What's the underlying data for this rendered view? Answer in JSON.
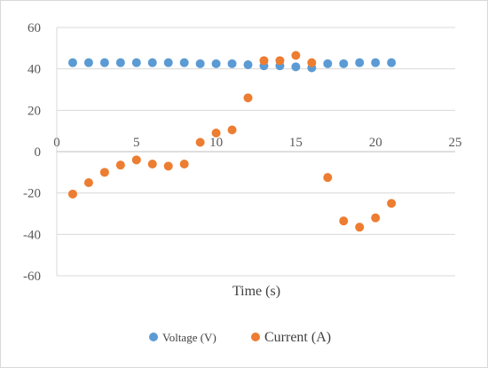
{
  "chart_data": {
    "type": "scatter",
    "title": "",
    "xlabel": "Time (s)",
    "ylabel": "",
    "xlim": [
      0,
      25
    ],
    "ylim": [
      -60,
      60
    ],
    "xticks": [
      0,
      5,
      10,
      15,
      20,
      25
    ],
    "yticks": [
      -60,
      -40,
      -20,
      0,
      20,
      40,
      60
    ],
    "grid": "horizontal",
    "legend_position": "bottom",
    "series": [
      {
        "name": "Voltage (V)",
        "color": "#5b9bd5",
        "x": [
          1,
          2,
          3,
          4,
          5,
          6,
          7,
          8,
          9,
          10,
          11,
          12,
          13,
          14,
          15,
          16,
          17,
          18,
          19,
          20,
          21
        ],
        "y": [
          43,
          43,
          43,
          43,
          43,
          43,
          43,
          43,
          42.5,
          42.5,
          42.5,
          42,
          41.5,
          41.5,
          41,
          40.5,
          42.5,
          42.5,
          43,
          43,
          43
        ]
      },
      {
        "name": "Current (A)",
        "color": "#ed7d31",
        "x": [
          1,
          2,
          3,
          4,
          5,
          6,
          7,
          8,
          9,
          10,
          11,
          12,
          13,
          14,
          15,
          16,
          17,
          18,
          19,
          20,
          21
        ],
        "y": [
          -20.5,
          -15,
          -10,
          -6.5,
          -4,
          -6,
          -7,
          -6,
          4.5,
          9,
          10.5,
          26,
          44,
          44,
          46.5,
          43,
          -12.5,
          -33.5,
          -36.5,
          -32,
          -25
        ]
      }
    ]
  }
}
